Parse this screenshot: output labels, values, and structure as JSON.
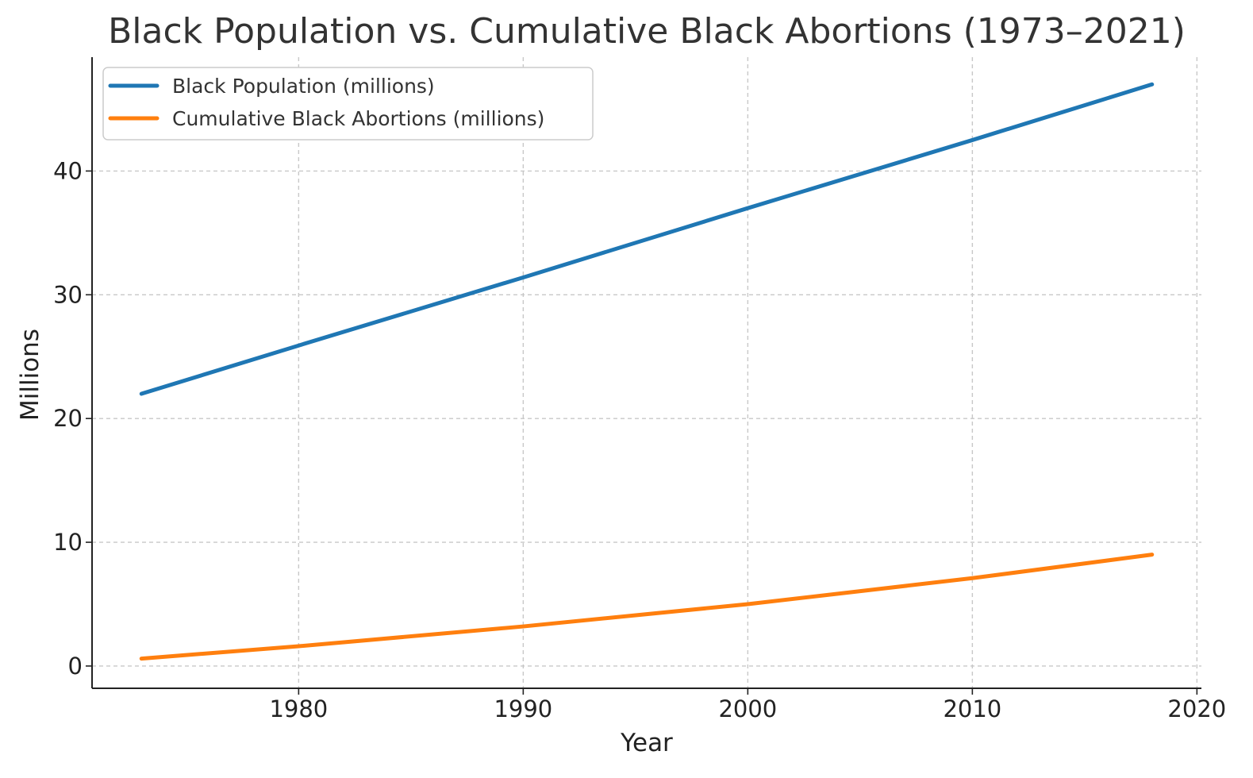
{
  "chart_data": {
    "type": "line",
    "title": "Black Population vs. Cumulative Black Abortions (1973–2021)",
    "xlabel": "Year",
    "ylabel": "Millions",
    "xlim": [
      1970.8,
      2020.2
    ],
    "ylim": [
      -1.8,
      49.2
    ],
    "x_ticks": [
      1980,
      1990,
      2000,
      2010,
      2020
    ],
    "y_ticks": [
      0,
      10,
      20,
      30,
      40
    ],
    "grid": true,
    "legend_position": "top-left",
    "series": [
      {
        "name": "Black Population (millions)",
        "color": "#1f77b4",
        "x": [
          1973,
          1980,
          1990,
          2000,
          2010,
          2018
        ],
        "y": [
          22,
          25.9,
          31.4,
          37,
          42.5,
          47
        ]
      },
      {
        "name": "Cumulative Black Abortions (millions)",
        "color": "#ff7f0e",
        "x": [
          1973,
          1980,
          1990,
          2000,
          2010,
          2018
        ],
        "y": [
          0.6,
          1.6,
          3.2,
          5.0,
          7.1,
          9.0
        ]
      }
    ]
  }
}
